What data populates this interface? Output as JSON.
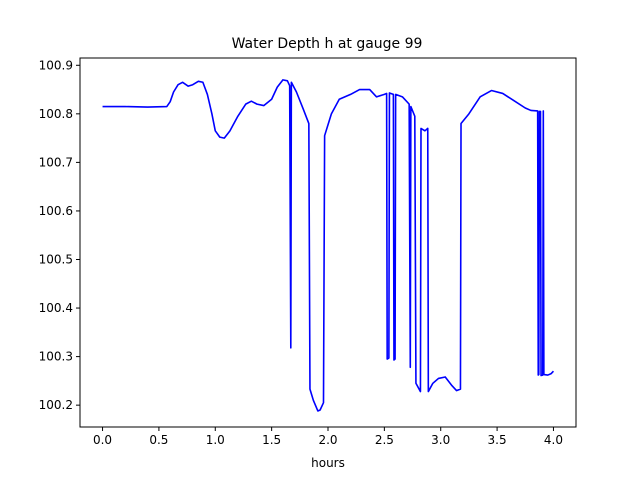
{
  "chart_data": {
    "type": "line",
    "title": "Water Depth h at gauge 99",
    "xlabel": "hours",
    "ylabel": "",
    "xlim": [
      -0.2,
      4.2
    ],
    "ylim": [
      100.155,
      100.915
    ],
    "xticks": [
      0.0,
      0.5,
      1.0,
      1.5,
      2.0,
      2.5,
      3.0,
      3.5,
      4.0
    ],
    "xtick_labels": [
      "0.0",
      "0.5",
      "1.0",
      "1.5",
      "2.0",
      "2.5",
      "3.0",
      "3.5",
      "4.0"
    ],
    "yticks": [
      100.2,
      100.3,
      100.4,
      100.5,
      100.6,
      100.7,
      100.8,
      100.9
    ],
    "ytick_labels": [
      "100.2",
      "100.3",
      "100.4",
      "100.5",
      "100.6",
      "100.7",
      "100.8",
      "100.9"
    ],
    "grid": false,
    "line_color": "#0000ff",
    "series": [
      {
        "points": [
          [
            0.0,
            100.815
          ],
          [
            0.2,
            100.815
          ],
          [
            0.4,
            100.814
          ],
          [
            0.57,
            100.815
          ],
          [
            0.6,
            100.825
          ],
          [
            0.63,
            100.845
          ],
          [
            0.67,
            100.86
          ],
          [
            0.71,
            100.865
          ],
          [
            0.76,
            100.857
          ],
          [
            0.8,
            100.86
          ],
          [
            0.85,
            100.867
          ],
          [
            0.89,
            100.865
          ],
          [
            0.93,
            100.84
          ],
          [
            0.97,
            100.8
          ],
          [
            1.0,
            100.765
          ],
          [
            1.04,
            100.752
          ],
          [
            1.08,
            100.75
          ],
          [
            1.13,
            100.765
          ],
          [
            1.2,
            100.795
          ],
          [
            1.27,
            100.82
          ],
          [
            1.32,
            100.826
          ],
          [
            1.37,
            100.82
          ],
          [
            1.43,
            100.817
          ],
          [
            1.5,
            100.83
          ],
          [
            1.55,
            100.855
          ],
          [
            1.6,
            100.87
          ],
          [
            1.64,
            100.868
          ],
          [
            1.66,
            100.858
          ],
          [
            1.67,
            100.318
          ],
          [
            1.675,
            100.865
          ],
          [
            1.72,
            100.845
          ],
          [
            1.78,
            100.81
          ],
          [
            1.83,
            100.78
          ],
          [
            1.84,
            100.233
          ],
          [
            1.87,
            100.21
          ],
          [
            1.91,
            100.188
          ],
          [
            1.93,
            100.19
          ],
          [
            1.96,
            100.205
          ],
          [
            1.97,
            100.755
          ],
          [
            2.03,
            100.8
          ],
          [
            2.1,
            100.83
          ],
          [
            2.2,
            100.84
          ],
          [
            2.28,
            100.85
          ],
          [
            2.37,
            100.85
          ],
          [
            2.43,
            100.835
          ],
          [
            2.5,
            100.84
          ],
          [
            2.52,
            100.842
          ],
          [
            2.525,
            100.295
          ],
          [
            2.54,
            100.297
          ],
          [
            2.545,
            100.843
          ],
          [
            2.58,
            100.84
          ],
          [
            2.585,
            100.293
          ],
          [
            2.595,
            100.295
          ],
          [
            2.6,
            100.84
          ],
          [
            2.66,
            100.835
          ],
          [
            2.72,
            100.82
          ],
          [
            2.73,
            100.278
          ],
          [
            2.735,
            100.815
          ],
          [
            2.77,
            100.795
          ],
          [
            2.78,
            100.245
          ],
          [
            2.82,
            100.228
          ],
          [
            2.825,
            100.77
          ],
          [
            2.86,
            100.765
          ],
          [
            2.885,
            100.77
          ],
          [
            2.89,
            100.228
          ],
          [
            2.93,
            100.245
          ],
          [
            2.98,
            100.255
          ],
          [
            3.04,
            100.258
          ],
          [
            3.1,
            100.24
          ],
          [
            3.14,
            100.23
          ],
          [
            3.175,
            100.233
          ],
          [
            3.18,
            100.78
          ],
          [
            3.25,
            100.8
          ],
          [
            3.35,
            100.835
          ],
          [
            3.45,
            100.848
          ],
          [
            3.55,
            100.842
          ],
          [
            3.65,
            100.827
          ],
          [
            3.75,
            100.812
          ],
          [
            3.8,
            100.807
          ],
          [
            3.86,
            100.806
          ],
          [
            3.865,
            100.262
          ],
          [
            3.87,
            100.263
          ],
          [
            3.875,
            100.805
          ],
          [
            3.885,
            100.805
          ],
          [
            3.89,
            100.261
          ],
          [
            3.905,
            100.262
          ],
          [
            3.91,
            100.806
          ],
          [
            3.915,
            100.263
          ],
          [
            3.95,
            100.262
          ],
          [
            3.98,
            100.265
          ],
          [
            4.0,
            100.27
          ]
        ]
      }
    ]
  }
}
